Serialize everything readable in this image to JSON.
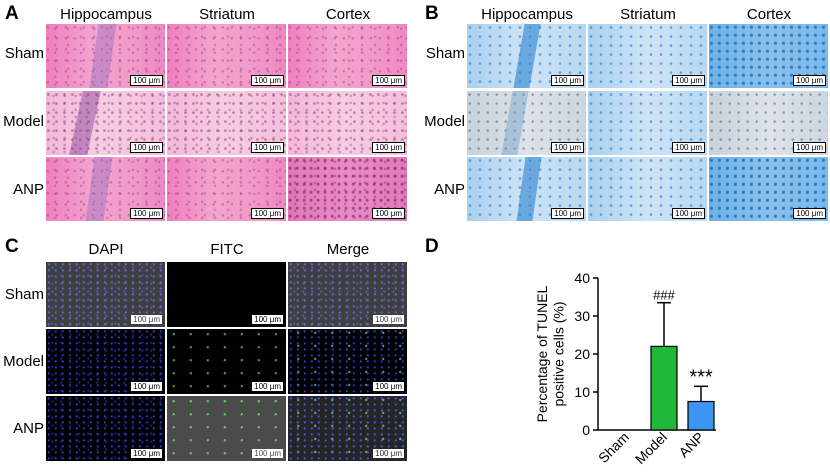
{
  "panels": {
    "a": {
      "label": "A",
      "columns": [
        "Hippocampus",
        "Striatum",
        "Cortex"
      ],
      "rows": [
        "Sham",
        "Model",
        "ANP"
      ],
      "scale_bar": "100 μm"
    },
    "b": {
      "label": "B",
      "columns": [
        "Hippocampus",
        "Striatum",
        "Cortex"
      ],
      "rows": [
        "Sham",
        "Model",
        "ANP"
      ],
      "scale_bar": "100 μm"
    },
    "c": {
      "label": "C",
      "columns": [
        "DAPI",
        "FITC",
        "Merge"
      ],
      "rows": [
        "Sham",
        "Model",
        "ANP"
      ],
      "scale_bar": "100 μm"
    },
    "d": {
      "label": "D"
    }
  },
  "colors": {
    "model_bar": "#1fb83a",
    "anp_bar": "#3a96f0"
  },
  "chart_data": {
    "type": "bar",
    "categories": [
      "Sham",
      "Model",
      "ANP"
    ],
    "values": [
      0,
      22,
      7.5
    ],
    "errors": [
      0,
      11.5,
      4
    ],
    "ylabel": "Percentage of TUNEL positive cells (%)",
    "ylim": [
      0,
      40
    ],
    "yticks": [
      0,
      10,
      20,
      30,
      40
    ],
    "annotations": [
      "",
      "###",
      "***"
    ]
  }
}
